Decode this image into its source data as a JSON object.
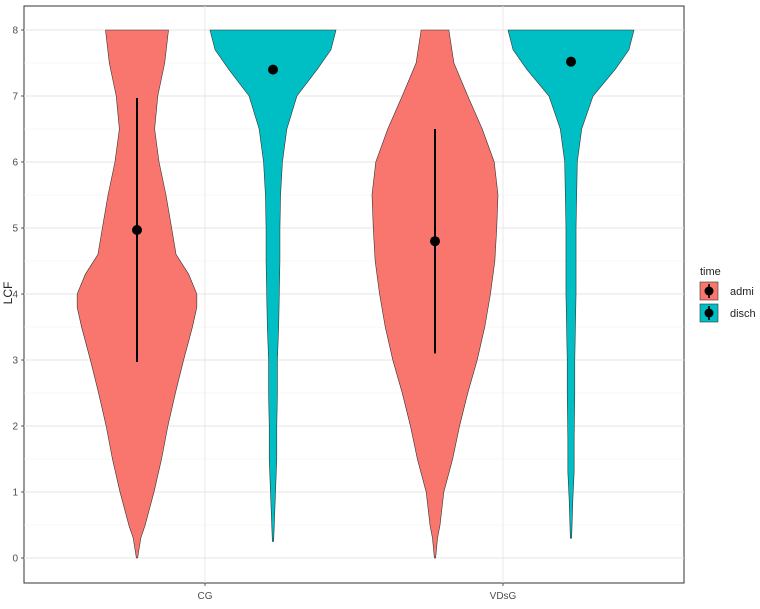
{
  "chart_data": {
    "type": "violin",
    "xlabel": "",
    "ylabel": "LCF",
    "ylim": [
      0,
      8
    ],
    "yticks": [
      0,
      1,
      2,
      3,
      4,
      5,
      6,
      7,
      8
    ],
    "categories": [
      "CG",
      "VDsG"
    ],
    "grid": true,
    "legend": {
      "title": "time",
      "position": "right",
      "entries": [
        {
          "label": "admi",
          "color": "#F8766D"
        },
        {
          "label": "disch",
          "color": "#00BFC4"
        }
      ]
    },
    "series": [
      {
        "name": "admi",
        "color": "#F8766D",
        "groups": [
          {
            "category": "CG",
            "mean": 4.97,
            "sd_range": [
              2.97,
              6.97
            ],
            "density": [
              [
                0,
                0.01
              ],
              [
                0.3,
                0.06
              ],
              [
                0.5,
                0.13
              ],
              [
                1,
                0.27
              ],
              [
                1.5,
                0.39
              ],
              [
                2,
                0.49
              ],
              [
                2.5,
                0.61
              ],
              [
                3,
                0.74
              ],
              [
                3.5,
                0.88
              ],
              [
                3.8,
                0.95
              ],
              [
                4.0,
                0.95
              ],
              [
                4.3,
                0.82
              ],
              [
                4.6,
                0.62
              ],
              [
                5.0,
                0.55
              ],
              [
                5.5,
                0.46
              ],
              [
                6,
                0.35
              ],
              [
                6.5,
                0.28
              ],
              [
                7,
                0.33
              ],
              [
                7.5,
                0.44
              ],
              [
                8,
                0.5
              ]
            ]
          },
          {
            "category": "VDsG",
            "mean": 4.8,
            "sd_range": [
              3.1,
              6.5
            ],
            "density": [
              [
                0,
                0.01
              ],
              [
                0.3,
                0.04
              ],
              [
                0.5,
                0.08
              ],
              [
                1,
                0.14
              ],
              [
                1.5,
                0.28
              ],
              [
                2,
                0.39
              ],
              [
                2.5,
                0.52
              ],
              [
                3,
                0.67
              ],
              [
                3.5,
                0.79
              ],
              [
                4,
                0.88
              ],
              [
                4.5,
                0.95
              ],
              [
                5,
                0.98
              ],
              [
                5.5,
                1.0
              ],
              [
                6,
                0.94
              ],
              [
                6.5,
                0.75
              ],
              [
                7,
                0.52
              ],
              [
                7.5,
                0.3
              ],
              [
                8,
                0.22
              ]
            ]
          }
        ]
      },
      {
        "name": "disch",
        "color": "#00BFC4",
        "groups": [
          {
            "category": "CG",
            "mean": 7.4,
            "sd_range": null,
            "density": [
              [
                0.25,
                0.01
              ],
              [
                0.5,
                0.02
              ],
              [
                1,
                0.04
              ],
              [
                1.5,
                0.06
              ],
              [
                2,
                0.06
              ],
              [
                2.5,
                0.07
              ],
              [
                3,
                0.07
              ],
              [
                3.5,
                0.09
              ],
              [
                4,
                0.1
              ],
              [
                4.5,
                0.11
              ],
              [
                5,
                0.11
              ],
              [
                5.5,
                0.12
              ],
              [
                6,
                0.15
              ],
              [
                6.5,
                0.22
              ],
              [
                7,
                0.38
              ],
              [
                7.4,
                0.7
              ],
              [
                7.7,
                0.92
              ],
              [
                8,
                1.0
              ]
            ]
          },
          {
            "category": "VDsG",
            "mean": 7.52,
            "sd_range": null,
            "density": [
              [
                0.3,
                0.01
              ],
              [
                0.9,
                0.03
              ],
              [
                1.3,
                0.05
              ],
              [
                1.8,
                0.05
              ],
              [
                2.5,
                0.06
              ],
              [
                3,
                0.06
              ],
              [
                3.5,
                0.07
              ],
              [
                4,
                0.08
              ],
              [
                4.5,
                0.08
              ],
              [
                5,
                0.08
              ],
              [
                5.5,
                0.09
              ],
              [
                6,
                0.1
              ],
              [
                6.5,
                0.17
              ],
              [
                7,
                0.35
              ],
              [
                7.4,
                0.7
              ],
              [
                7.7,
                0.92
              ],
              [
                8,
                1.0
              ]
            ]
          }
        ]
      }
    ]
  }
}
